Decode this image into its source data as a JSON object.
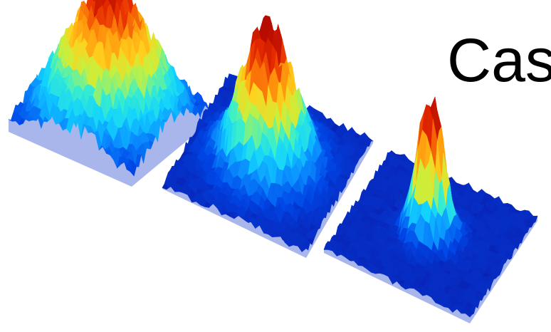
{
  "caption": "Cas",
  "colormap": [
    "#0a1fb0",
    "#0046e6",
    "#0a8cff",
    "#12d2ff",
    "#3cf0c8",
    "#c8f03c",
    "#ffd21e",
    "#ff8c0a",
    "#e62a00",
    "#b40a00"
  ],
  "surfaces": [
    {
      "name": "broad-peak-surface",
      "peak_spread": "broad",
      "peak_height": 0.95
    },
    {
      "name": "medium-peak-surface",
      "peak_spread": "medium",
      "peak_height": 1.0
    },
    {
      "name": "narrow-peak-surface",
      "peak_spread": "narrow",
      "peak_height": 1.0
    }
  ]
}
